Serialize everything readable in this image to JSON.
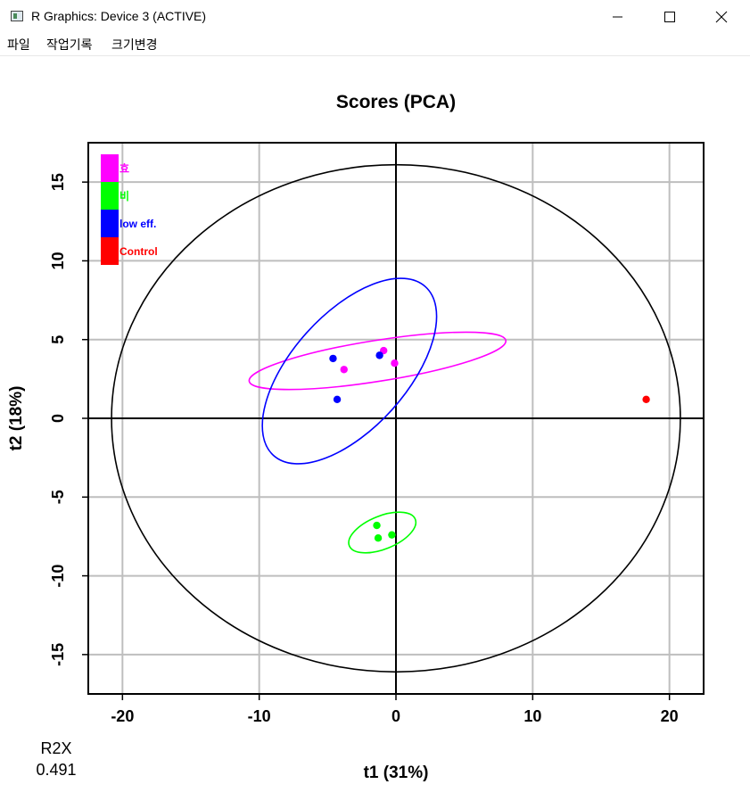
{
  "window": {
    "title": "R Graphics: Device 3 (ACTIVE)",
    "icon": "r-graphics-window-icon"
  },
  "menu": {
    "items": [
      "파일",
      "작업기록",
      "크기변경"
    ]
  },
  "footer": {
    "r2x_label": "R2X",
    "r2x_value": "0.491"
  },
  "chart_data": {
    "type": "scatter",
    "title": "Scores (PCA)",
    "xlabel": "t1 (31%)",
    "ylabel": "t2 (18%)",
    "xlim": [
      -22.5,
      22.5
    ],
    "ylim": [
      -17.5,
      17.5
    ],
    "xticks": [
      -20,
      -10,
      0,
      10,
      20
    ],
    "yticks": [
      -15,
      -10,
      -5,
      0,
      5,
      10,
      15
    ],
    "xtick_labels": [
      "-20",
      "-10",
      "0",
      "10",
      "20"
    ],
    "ytick_labels": [
      "-15",
      "-10",
      "-5",
      "0",
      "5",
      "10",
      "15"
    ],
    "grid": true,
    "legend_position": "top-left",
    "colors": {
      "magenta": "#ff00ff",
      "green": "#00ff00",
      "blue": "#0000ff",
      "red": "#ff0000"
    },
    "hotelling_ellipse": {
      "center": [
        0,
        0
      ],
      "radius_x": 20.8,
      "radius_y": 16.1
    },
    "series": [
      {
        "name": "효",
        "color": "#ff00ff",
        "points": [
          [
            -0.9,
            4.3
          ],
          [
            -3.8,
            3.1
          ],
          [
            -0.1,
            3.5
          ]
        ],
        "ellipse": {
          "center": [
            -1.35,
            3.65
          ],
          "rx": 9.5,
          "ry": 1.3,
          "angle_deg": -9
        }
      },
      {
        "name": "비",
        "color": "#00ff00",
        "points": [
          [
            -1.4,
            -6.8
          ],
          [
            -1.3,
            -7.6
          ],
          [
            -0.3,
            -7.4
          ]
        ],
        "ellipse": {
          "center": [
            -1.0,
            -7.25
          ],
          "rx": 2.6,
          "ry": 1.05,
          "angle_deg": -22
        }
      },
      {
        "name": "low eff.",
        "color": "#0000ff",
        "points": [
          [
            -4.6,
            3.8
          ],
          [
            -4.3,
            1.2
          ],
          [
            -1.2,
            4.0
          ]
        ],
        "ellipse": {
          "center": [
            -3.4,
            3.0
          ],
          "rx": 8.3,
          "ry": 3.65,
          "angle_deg": -48
        }
      },
      {
        "name": "Control",
        "color": "#ff0000",
        "points": [
          [
            18.3,
            1.2
          ]
        ]
      }
    ]
  }
}
